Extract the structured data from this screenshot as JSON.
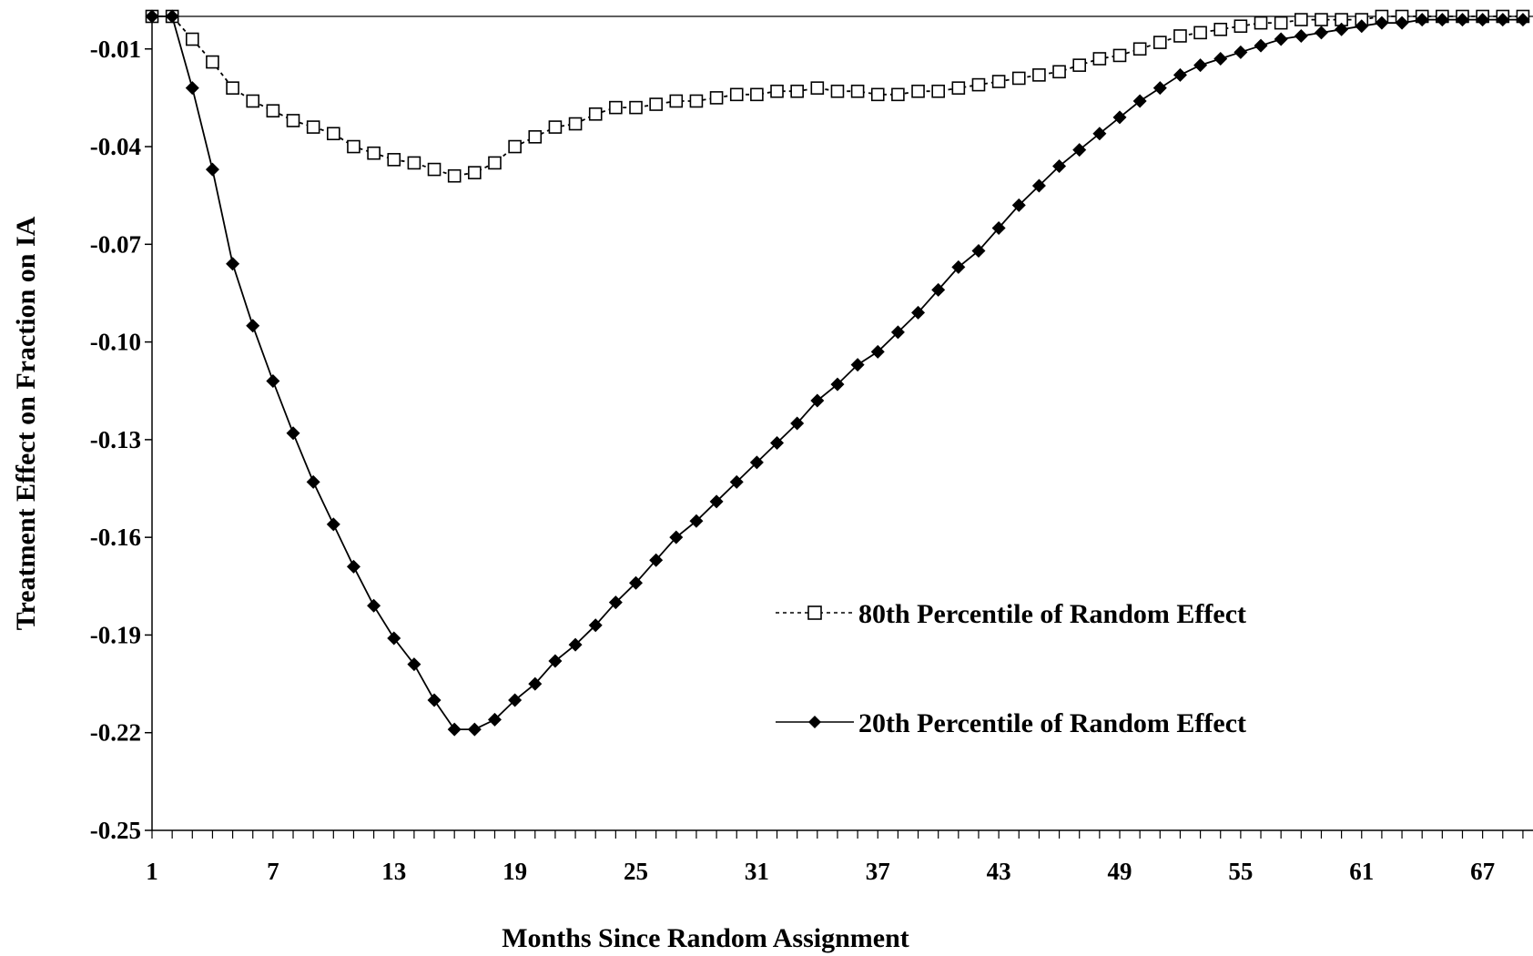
{
  "chart_data": {
    "type": "line",
    "title": "",
    "xlabel": "Months Since Random Assignment",
    "ylabel": "Treatment Effect on Fraction on IA",
    "xlim": [
      1,
      69.5
    ],
    "ylim": [
      -0.25,
      0.0
    ],
    "x_ticks": [
      "1",
      "7",
      "13",
      "19",
      "25",
      "31",
      "37",
      "43",
      "49",
      "55",
      "61",
      "67"
    ],
    "y_ticks": [
      "-0.01",
      "-0.04",
      "-0.07",
      "-0.10",
      "-0.13",
      "-0.16",
      "-0.19",
      "-0.22",
      "-0.25"
    ],
    "y_tick_values": [
      -0.01,
      -0.04,
      -0.07,
      -0.1,
      -0.13,
      -0.16,
      -0.19,
      -0.22,
      -0.25
    ],
    "grid": false,
    "legend_position": "right-middle",
    "x": [
      1,
      2,
      3,
      4,
      5,
      6,
      7,
      8,
      9,
      10,
      11,
      12,
      13,
      14,
      15,
      16,
      17,
      18,
      19,
      20,
      21,
      22,
      23,
      24,
      25,
      26,
      27,
      28,
      29,
      30,
      31,
      32,
      33,
      34,
      35,
      36,
      37,
      38,
      39,
      40,
      41,
      42,
      43,
      44,
      45,
      46,
      47,
      48,
      49,
      50,
      51,
      52,
      53,
      54,
      55,
      56,
      57,
      58,
      59,
      60,
      61,
      62,
      63,
      64,
      65,
      66,
      67,
      68,
      69
    ],
    "series": [
      {
        "name": "80th Percentile of Random Effect",
        "marker": "open-square",
        "line_style": "dashed",
        "color": "#000000",
        "values": [
          0.0,
          0.0,
          -0.007,
          -0.014,
          -0.022,
          -0.026,
          -0.029,
          -0.032,
          -0.034,
          -0.036,
          -0.04,
          -0.042,
          -0.044,
          -0.045,
          -0.047,
          -0.049,
          -0.048,
          -0.045,
          -0.04,
          -0.037,
          -0.034,
          -0.033,
          -0.03,
          -0.028,
          -0.028,
          -0.027,
          -0.026,
          -0.026,
          -0.025,
          -0.024,
          -0.024,
          -0.023,
          -0.023,
          -0.022,
          -0.023,
          -0.023,
          -0.024,
          -0.024,
          -0.023,
          -0.023,
          -0.022,
          -0.021,
          -0.02,
          -0.019,
          -0.018,
          -0.017,
          -0.015,
          -0.013,
          -0.012,
          -0.01,
          -0.008,
          -0.006,
          -0.005,
          -0.004,
          -0.003,
          -0.002,
          -0.002,
          -0.001,
          -0.001,
          -0.001,
          -0.001,
          0.0,
          0.0,
          0.0,
          0.0,
          0.0,
          0.0,
          0.0,
          0.0
        ]
      },
      {
        "name": "20th Percentile of Random Effect",
        "marker": "filled-diamond",
        "line_style": "solid",
        "color": "#000000",
        "values": [
          0.0,
          0.0,
          -0.022,
          -0.047,
          -0.076,
          -0.095,
          -0.112,
          -0.128,
          -0.143,
          -0.156,
          -0.169,
          -0.181,
          -0.191,
          -0.199,
          -0.21,
          -0.219,
          -0.219,
          -0.216,
          -0.21,
          -0.205,
          -0.198,
          -0.193,
          -0.187,
          -0.18,
          -0.174,
          -0.167,
          -0.16,
          -0.155,
          -0.149,
          -0.143,
          -0.137,
          -0.131,
          -0.125,
          -0.118,
          -0.113,
          -0.107,
          -0.103,
          -0.097,
          -0.091,
          -0.084,
          -0.077,
          -0.072,
          -0.065,
          -0.058,
          -0.052,
          -0.046,
          -0.041,
          -0.036,
          -0.031,
          -0.026,
          -0.022,
          -0.018,
          -0.015,
          -0.013,
          -0.011,
          -0.009,
          -0.007,
          -0.006,
          -0.005,
          -0.004,
          -0.003,
          -0.002,
          -0.002,
          -0.001,
          -0.001,
          -0.001,
          -0.001,
          -0.001,
          -0.001
        ]
      }
    ]
  }
}
